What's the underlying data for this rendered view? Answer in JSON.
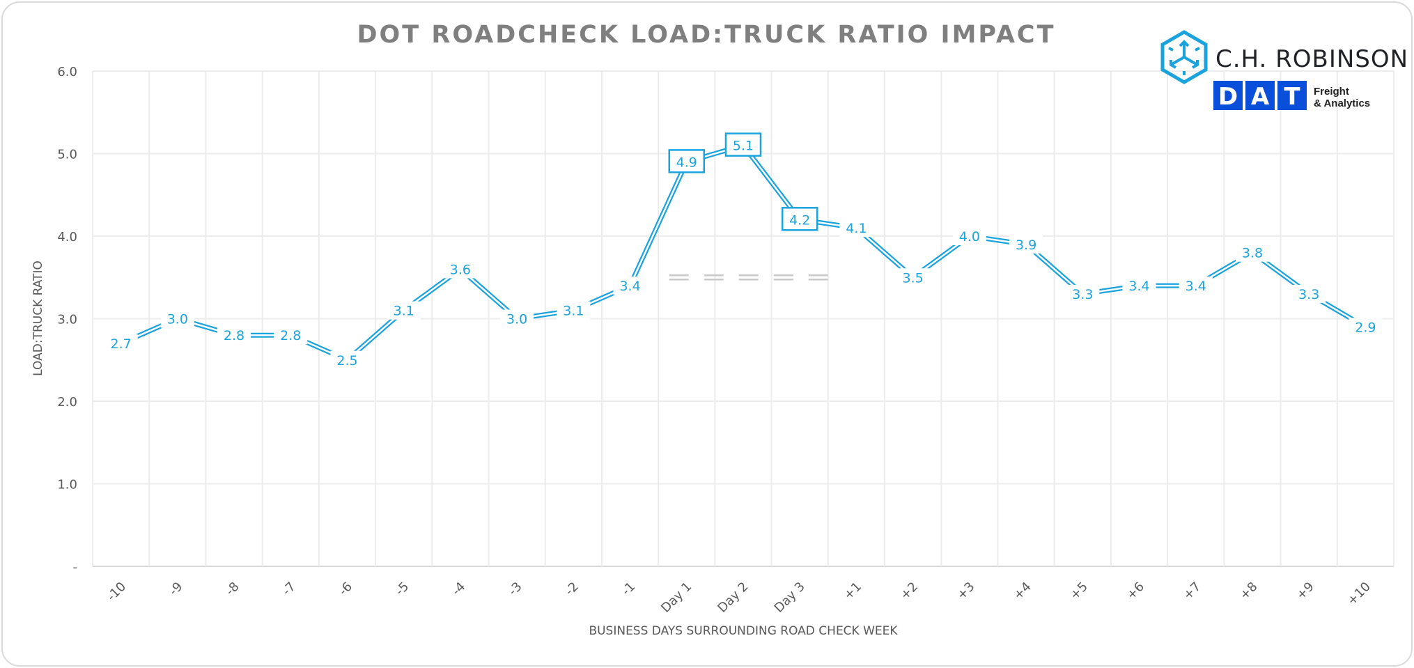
{
  "chart_data": {
    "type": "line",
    "title": "DOT ROADCHECK LOAD:TRUCK RATIO IMPACT",
    "xlabel": "BUSINESS DAYS SURROUNDING ROAD CHECK WEEK",
    "ylabel": "LOAD:TRUCK RATIO",
    "ylim": [
      0,
      6
    ],
    "yticks": [
      "-",
      "1.0",
      "2.0",
      "3.0",
      "4.0",
      "5.0",
      "6.0"
    ],
    "grid": true,
    "categories": [
      "-10",
      "-9",
      "-8",
      "-7",
      "-6",
      "-5",
      "-4",
      "-3",
      "-2",
      "-1",
      "Day 1",
      "Day 2",
      "Day 3",
      "+1",
      "+2",
      "+3",
      "+4",
      "+5",
      "+6",
      "+7",
      "+8",
      "+9",
      "+10"
    ],
    "series": [
      {
        "values": [
          2.7,
          3.0,
          2.8,
          2.8,
          2.5,
          3.1,
          3.6,
          3.0,
          3.1,
          3.4,
          4.9,
          5.1,
          4.2,
          4.1,
          3.5,
          4.0,
          3.9,
          3.3,
          3.4,
          3.4,
          3.8,
          3.3,
          2.9
        ],
        "labels": [
          "2.7",
          "3.0",
          "2.8",
          "2.8",
          "2.5",
          "3.1",
          "3.6",
          "3.0",
          "3.1",
          "3.4",
          "4.9",
          "5.1",
          "4.2",
          "4.1",
          "3.5",
          "4.0",
          "3.9",
          "3.3",
          "3.4",
          "3.4",
          "3.8",
          "3.3",
          "2.9"
        ],
        "boxed_labels": [
          "Day 1",
          "Day 2",
          "Day 3"
        ],
        "color": "#1aa3dd"
      }
    ],
    "reference_line": {
      "value": 3.5,
      "from": "Day 1",
      "to": "+1",
      "style": "dashed double",
      "color": "#c8c8c8"
    }
  },
  "logos": {
    "chr": {
      "text": "C.H. ROBINSON",
      "color": "#1aa3dd"
    },
    "dat": {
      "letters": [
        "D",
        "A",
        "T"
      ],
      "tagline_1": "Freight",
      "tagline_2": "& Analytics",
      "color": "#0a4fd9"
    }
  }
}
